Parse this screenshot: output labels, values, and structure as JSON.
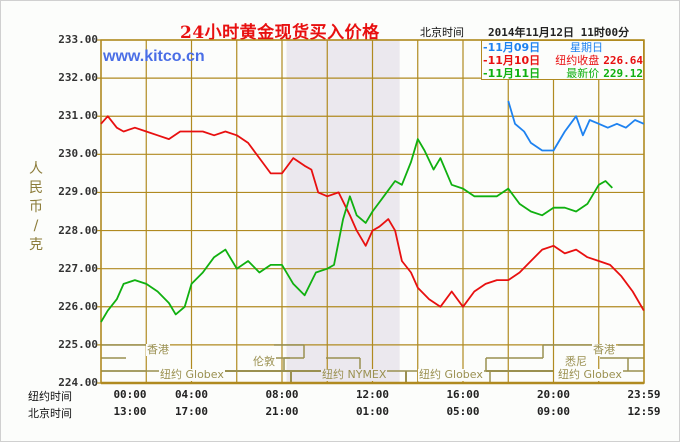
{
  "header": {
    "title": "24小时黄金现货买入价格",
    "timezone_label": "北京时间",
    "datetime": "2014年11月12日 11时00分",
    "brand": "www.kitco.cn"
  },
  "legend": {
    "items": [
      {
        "date": "-11月09日",
        "key": "星期日",
        "value": "",
        "color": "#1e82f0"
      },
      {
        "date": "-11月10日",
        "key": "纽约收盘",
        "value": "226.64",
        "color": "#e81010"
      },
      {
        "date": "-11月11日",
        "key": "最新价",
        "value": "229.12",
        "color": "#10b010"
      }
    ]
  },
  "axis": {
    "y_unit_label": "人民币/克",
    "y_ticks": [
      "233.00",
      "232.00",
      "231.00",
      "230.00",
      "229.00",
      "228.00",
      "227.00",
      "226.00",
      "225.00",
      "224.00"
    ],
    "x_row1_label": "纽约时间",
    "x_row2_label": "北京时间",
    "x_ticks_ny": [
      "00:00",
      "04:00",
      "08:00",
      "12:00",
      "16:00",
      "20:00",
      "23:59"
    ],
    "x_ticks_bj": [
      "13:00",
      "17:00",
      "21:00",
      "01:00",
      "05:00",
      "09:00",
      "12:59"
    ]
  },
  "sessions": {
    "hongkong_1": "香港",
    "london": "伦敦",
    "ny_globex_1": "纽约 Globex",
    "ny_nymex": "纽约 NYMEX",
    "ny_globex_2": "纽约 Globex",
    "hongkong_2": "香港",
    "sydney": "悉尼",
    "ny_globex_3": "纽约 Globex"
  },
  "colors": {
    "grid": "#b08a20",
    "shade": "#ebe8ee",
    "nov09": "#1e82f0",
    "nov10": "#e81010",
    "nov11": "#10b010",
    "title": "#e81010",
    "brand": "#4a6ee6"
  },
  "chart_data": {
    "type": "line",
    "title": "24小时黄金现货买入价格",
    "xlabel": "纽约时间 / 北京时间",
    "ylabel": "人民币/克",
    "ylim": [
      224,
      233
    ],
    "x_range_hours_ny": [
      0,
      24
    ],
    "grid": true,
    "legend_position": "top-right",
    "shaded_region_hours_ny": [
      8.2,
      13.2
    ],
    "series": [
      {
        "name": "11月09日 星期日",
        "color": "#1e82f0",
        "x": [
          18.0,
          18.3,
          18.7,
          19.0,
          19.5,
          20.0,
          20.5,
          21.0,
          21.3,
          21.6,
          22.0,
          22.4,
          22.8,
          23.2,
          23.6,
          23.99
        ],
        "values": [
          231.4,
          230.8,
          230.6,
          230.3,
          230.1,
          230.1,
          230.6,
          231.0,
          230.5,
          230.9,
          230.8,
          230.7,
          230.8,
          230.7,
          230.9,
          230.8
        ]
      },
      {
        "name": "11月10日 纽约收盘 226.64",
        "color": "#e81010",
        "x": [
          0.0,
          0.3,
          0.7,
          1.0,
          1.5,
          2.0,
          2.5,
          3.0,
          3.5,
          4.0,
          4.5,
          5.0,
          5.5,
          6.0,
          6.5,
          7.0,
          7.5,
          8.0,
          8.5,
          9.0,
          9.3,
          9.6,
          10.0,
          10.5,
          11.0,
          11.3,
          11.7,
          12.0,
          12.3,
          12.7,
          13.0,
          13.3,
          13.7,
          14.0,
          14.5,
          15.0,
          15.5,
          16.0,
          16.5,
          17.0,
          17.5,
          18.0,
          18.5,
          19.0,
          19.5,
          20.0,
          20.5,
          21.0,
          21.5,
          22.0,
          22.5,
          23.0,
          23.5,
          23.99
        ],
        "values": [
          230.8,
          231.0,
          230.7,
          230.6,
          230.7,
          230.6,
          230.5,
          230.4,
          230.6,
          230.6,
          230.6,
          230.5,
          230.6,
          230.5,
          230.3,
          229.9,
          229.5,
          229.5,
          229.9,
          229.7,
          229.6,
          229.0,
          228.9,
          229.0,
          228.4,
          228.0,
          227.6,
          228.0,
          228.1,
          228.3,
          228.0,
          227.2,
          226.9,
          226.5,
          226.2,
          226.0,
          226.4,
          226.0,
          226.4,
          226.6,
          226.7,
          226.7,
          226.9,
          227.2,
          227.5,
          227.6,
          227.4,
          227.5,
          227.3,
          227.2,
          227.1,
          226.8,
          226.4,
          225.9
        ]
      },
      {
        "name": "11月11日 最新价 229.12",
        "color": "#10b010",
        "x": [
          0.0,
          0.3,
          0.7,
          1.0,
          1.5,
          2.0,
          2.5,
          3.0,
          3.3,
          3.7,
          4.0,
          4.5,
          5.0,
          5.5,
          6.0,
          6.5,
          7.0,
          7.5,
          8.0,
          8.5,
          9.0,
          9.5,
          10.0,
          10.3,
          10.7,
          11.0,
          11.3,
          11.7,
          12.0,
          12.5,
          13.0,
          13.3,
          13.7,
          14.0,
          14.3,
          14.7,
          15.0,
          15.5,
          16.0,
          16.5,
          17.0,
          17.5,
          18.0,
          18.5,
          19.0,
          19.5,
          20.0,
          20.5,
          21.0,
          21.5,
          22.0,
          22.3,
          22.6
        ],
        "values": [
          225.6,
          225.9,
          226.2,
          226.6,
          226.7,
          226.6,
          226.4,
          226.1,
          225.8,
          226.0,
          226.6,
          226.9,
          227.3,
          227.5,
          227.0,
          227.2,
          226.9,
          227.1,
          227.1,
          226.6,
          226.3,
          226.9,
          227.0,
          227.1,
          228.3,
          228.9,
          228.4,
          228.2,
          228.5,
          228.9,
          229.3,
          229.2,
          229.8,
          230.4,
          230.1,
          229.6,
          229.9,
          229.2,
          229.1,
          228.9,
          228.9,
          228.9,
          229.1,
          228.7,
          228.5,
          228.4,
          228.6,
          228.6,
          228.5,
          228.7,
          229.2,
          229.3,
          229.12
        ]
      }
    ]
  }
}
